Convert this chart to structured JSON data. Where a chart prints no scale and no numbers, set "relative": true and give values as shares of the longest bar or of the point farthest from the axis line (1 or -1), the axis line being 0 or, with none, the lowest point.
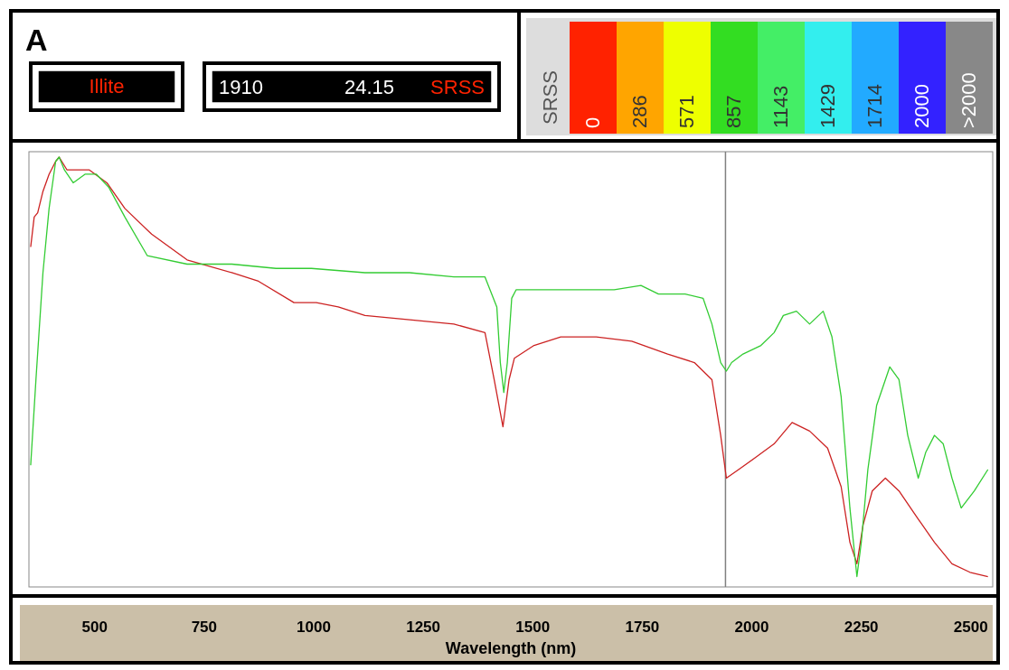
{
  "chart_data": {
    "type": "line",
    "xlabel": "Wavelength (nm)",
    "relative": true,
    "xlim": [
      350,
      2550
    ],
    "xticks": [
      500,
      750,
      1000,
      1250,
      1500,
      1750,
      2000,
      2250,
      2500
    ],
    "grid": false,
    "line_style": "solid",
    "ref_lines": [
      {
        "axis": "x",
        "value": 1940,
        "color": "#808080"
      }
    ],
    "annotations": [
      "A",
      "Illite",
      "1910",
      "24.15",
      "SRSS",
      "SRSS",
      "0",
      "286",
      "571",
      "857",
      "1143",
      "1429",
      "1714",
      "2000",
      ">2000"
    ],
    "series": [
      {
        "color": "#cc2222",
        "x": [
          354,
          362,
          370,
          382,
          396,
          411,
          419,
          437,
          457,
          488,
          528,
          569,
          630,
          711,
          813,
          874,
          955,
          1006,
          1056,
          1117,
          1219,
          1320,
          1391,
          1412,
          1432,
          1446,
          1458,
          1503,
          1564,
          1645,
          1726,
          1808,
          1869,
          1909,
          1929,
          1942,
          1970,
          2011,
          2051,
          2092,
          2132,
          2173,
          2204,
          2224,
          2240,
          2254,
          2275,
          2305,
          2336,
          2376,
          2417,
          2457,
          2498,
          2539
        ],
        "values": [
          0.79,
          0.86,
          0.87,
          0.92,
          0.96,
          0.99,
          1.0,
          0.97,
          0.97,
          0.97,
          0.94,
          0.88,
          0.82,
          0.76,
          0.73,
          0.71,
          0.66,
          0.66,
          0.65,
          0.63,
          0.62,
          0.61,
          0.59,
          0.48,
          0.37,
          0.48,
          0.53,
          0.56,
          0.58,
          0.58,
          0.57,
          0.54,
          0.52,
          0.48,
          0.35,
          0.25,
          0.27,
          0.3,
          0.33,
          0.38,
          0.36,
          0.32,
          0.23,
          0.1,
          0.05,
          0.14,
          0.22,
          0.25,
          0.22,
          0.16,
          0.1,
          0.05,
          0.03,
          0.02
        ]
      },
      {
        "color": "#33cc33",
        "x": [
          354,
          366,
          382,
          396,
          411,
          419,
          431,
          451,
          478,
          504,
          532,
          569,
          620,
          711,
          813,
          914,
          995,
          1117,
          1219,
          1320,
          1391,
          1418,
          1426,
          1434,
          1442,
          1452,
          1462,
          1523,
          1584,
          1686,
          1747,
          1787,
          1848,
          1889,
          1909,
          1929,
          1942,
          1954,
          1980,
          2021,
          2051,
          2072,
          2102,
          2132,
          2163,
          2183,
          2204,
          2224,
          2240,
          2250,
          2265,
          2285,
          2315,
          2336,
          2356,
          2380,
          2397,
          2417,
          2437,
          2457,
          2478,
          2508,
          2539
        ],
        "values": [
          0.28,
          0.48,
          0.73,
          0.88,
          0.99,
          1.0,
          0.97,
          0.94,
          0.96,
          0.96,
          0.93,
          0.86,
          0.77,
          0.75,
          0.75,
          0.74,
          0.74,
          0.73,
          0.73,
          0.72,
          0.72,
          0.65,
          0.52,
          0.45,
          0.52,
          0.67,
          0.69,
          0.69,
          0.69,
          0.69,
          0.7,
          0.68,
          0.68,
          0.67,
          0.61,
          0.52,
          0.5,
          0.52,
          0.54,
          0.56,
          0.59,
          0.63,
          0.64,
          0.61,
          0.64,
          0.58,
          0.44,
          0.18,
          0.02,
          0.1,
          0.27,
          0.42,
          0.51,
          0.48,
          0.35,
          0.25,
          0.31,
          0.35,
          0.33,
          0.25,
          0.18,
          0.22,
          0.27
        ]
      }
    ]
  }
}
